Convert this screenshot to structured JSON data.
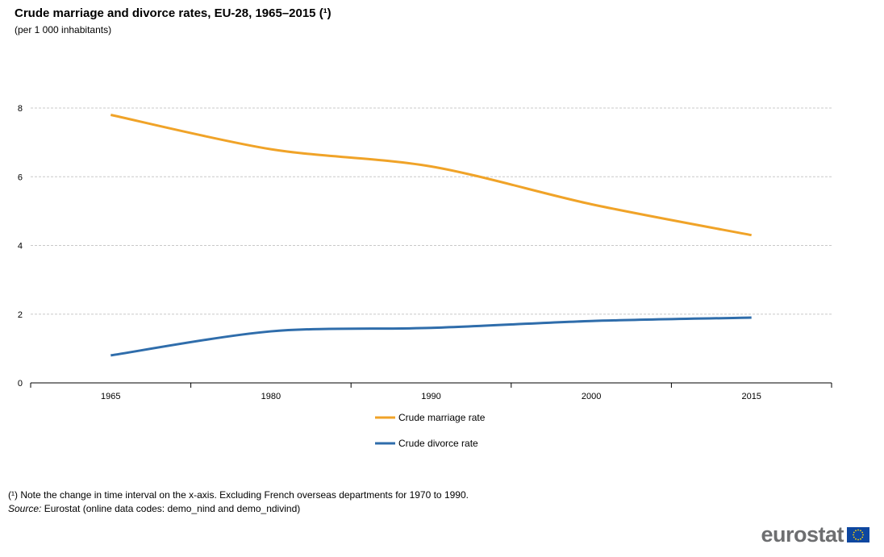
{
  "title": "Crude marriage and divorce rates, EU-28, 1965–2015 (¹)",
  "subtitle": "(per 1 000 inhabitants)",
  "footnote": "(¹) Note the change in time interval on the x-axis. Excluding French overseas departments for 1970 to 1990.",
  "source_label": "Source:",
  "source_text": " Eurostat (online data codes: demo_nind and demo_ndivind)",
  "logo_text": "eurostat",
  "chart_data": {
    "type": "line",
    "categories": [
      "1965",
      "1980",
      "1990",
      "2000",
      "2015"
    ],
    "series": [
      {
        "name": "Crude marriage rate",
        "values": [
          7.8,
          6.8,
          6.3,
          5.2,
          4.3
        ],
        "color": "#f0a328"
      },
      {
        "name": "Crude divorce rate",
        "values": [
          0.8,
          1.5,
          1.6,
          1.8,
          1.9
        ],
        "color": "#2f6dab"
      }
    ],
    "ylim": [
      0,
      8
    ],
    "yticks": [
      0,
      2,
      4,
      6,
      8
    ],
    "grid": true,
    "legend": "bottom"
  }
}
